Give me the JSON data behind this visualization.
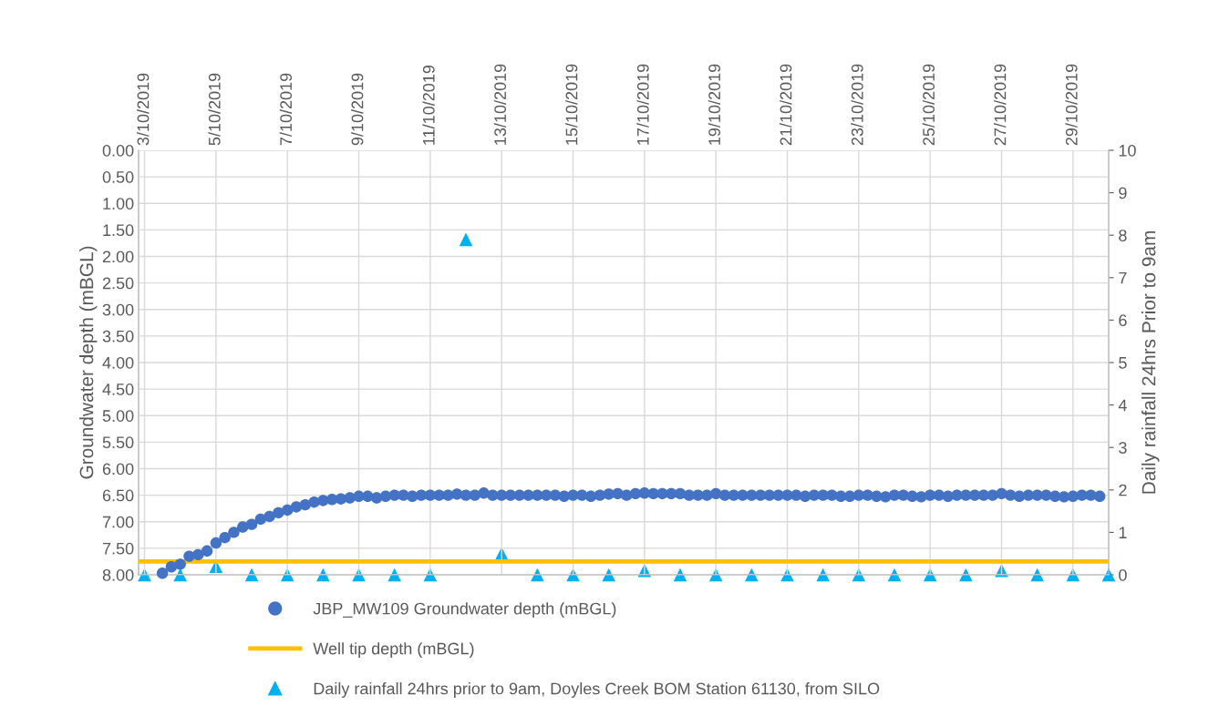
{
  "chart_data": {
    "type": "scatter",
    "ylabel": "Groundwater depth (mBGL)",
    "y2label": "Daily rainfall 24hrs Prior to 9am",
    "xlim": [
      "2019-10-02T20:00",
      "2019-10-30T00:00"
    ],
    "xticks": [
      {
        "value": "2019-10-03",
        "label": "3/10/2019"
      },
      {
        "value": "2019-10-05",
        "label": "5/10/2019"
      },
      {
        "value": "2019-10-07",
        "label": "7/10/2019"
      },
      {
        "value": "2019-10-09",
        "label": "9/10/2019"
      },
      {
        "value": "2019-10-11",
        "label": "11/10/2019"
      },
      {
        "value": "2019-10-13",
        "label": "13/10/2019"
      },
      {
        "value": "2019-10-15",
        "label": "15/10/2019"
      },
      {
        "value": "2019-10-17",
        "label": "17/10/2019"
      },
      {
        "value": "2019-10-19",
        "label": "19/10/2019"
      },
      {
        "value": "2019-10-21",
        "label": "21/10/2019"
      },
      {
        "value": "2019-10-23",
        "label": "23/10/2019"
      },
      {
        "value": "2019-10-25",
        "label": "25/10/2019"
      },
      {
        "value": "2019-10-27",
        "label": "27/10/2019"
      },
      {
        "value": "2019-10-29",
        "label": "29/10/2019"
      }
    ],
    "ylim": [
      8,
      0
    ],
    "yticks": [
      {
        "value": 0,
        "label": "0.00"
      },
      {
        "value": 0.5,
        "label": "0.50"
      },
      {
        "value": 1,
        "label": "1.00"
      },
      {
        "value": 1.5,
        "label": "1.50"
      },
      {
        "value": 2,
        "label": "2.00"
      },
      {
        "value": 2.5,
        "label": "2.50"
      },
      {
        "value": 3,
        "label": "3.00"
      },
      {
        "value": 3.5,
        "label": "3.50"
      },
      {
        "value": 4,
        "label": "4.00"
      },
      {
        "value": 4.5,
        "label": "4.50"
      },
      {
        "value": 5,
        "label": "5.00"
      },
      {
        "value": 5.5,
        "label": "5.50"
      },
      {
        "value": 6,
        "label": "6.00"
      },
      {
        "value": 6.5,
        "label": "6.50"
      },
      {
        "value": 7,
        "label": "7.00"
      },
      {
        "value": 7.5,
        "label": "7.50"
      },
      {
        "value": 8,
        "label": "8.00"
      }
    ],
    "y2lim": [
      0,
      10
    ],
    "y2ticks": [
      0,
      1,
      2,
      3,
      4,
      5,
      6,
      7,
      8,
      9,
      10
    ],
    "grid": true,
    "legend": "bottom",
    "series": [
      {
        "name": "JBP_MW109 Groundwater depth (mBGL)",
        "marker": "circle",
        "color": "#4472c4",
        "x": [
          "2019-10-03T12:00",
          "2019-10-03T18:00",
          "2019-10-04T00:00",
          "2019-10-04T06:00",
          "2019-10-04T12:00",
          "2019-10-04T18:00",
          "2019-10-05T00:00",
          "2019-10-05T06:00",
          "2019-10-05T12:00",
          "2019-10-05T18:00",
          "2019-10-06T00:00",
          "2019-10-06T06:00",
          "2019-10-06T12:00",
          "2019-10-06T18:00",
          "2019-10-07T00:00",
          "2019-10-07T06:00",
          "2019-10-07T12:00",
          "2019-10-07T18:00",
          "2019-10-08T00:00",
          "2019-10-08T06:00",
          "2019-10-08T12:00",
          "2019-10-08T18:00",
          "2019-10-09T00:00",
          "2019-10-09T06:00",
          "2019-10-09T12:00",
          "2019-10-09T18:00",
          "2019-10-10T00:00",
          "2019-10-10T06:00",
          "2019-10-10T12:00",
          "2019-10-10T18:00",
          "2019-10-11T00:00",
          "2019-10-11T06:00",
          "2019-10-11T12:00",
          "2019-10-11T18:00",
          "2019-10-12T00:00",
          "2019-10-12T06:00",
          "2019-10-12T12:00",
          "2019-10-12T18:00",
          "2019-10-13T00:00",
          "2019-10-13T06:00",
          "2019-10-13T12:00",
          "2019-10-13T18:00",
          "2019-10-14T00:00",
          "2019-10-14T06:00",
          "2019-10-14T12:00",
          "2019-10-14T18:00",
          "2019-10-15T00:00",
          "2019-10-15T06:00",
          "2019-10-15T12:00",
          "2019-10-15T18:00",
          "2019-10-16T00:00",
          "2019-10-16T06:00",
          "2019-10-16T12:00",
          "2019-10-16T18:00",
          "2019-10-17T00:00",
          "2019-10-17T06:00",
          "2019-10-17T12:00",
          "2019-10-17T18:00",
          "2019-10-18T00:00",
          "2019-10-18T06:00",
          "2019-10-18T12:00",
          "2019-10-18T18:00",
          "2019-10-19T00:00",
          "2019-10-19T06:00",
          "2019-10-19T12:00",
          "2019-10-19T18:00",
          "2019-10-20T00:00",
          "2019-10-20T06:00",
          "2019-10-20T12:00",
          "2019-10-20T18:00",
          "2019-10-21T00:00",
          "2019-10-21T06:00",
          "2019-10-21T12:00",
          "2019-10-21T18:00",
          "2019-10-22T00:00",
          "2019-10-22T06:00",
          "2019-10-22T12:00",
          "2019-10-22T18:00",
          "2019-10-23T00:00",
          "2019-10-23T06:00",
          "2019-10-23T12:00",
          "2019-10-23T18:00",
          "2019-10-24T00:00",
          "2019-10-24T06:00",
          "2019-10-24T12:00",
          "2019-10-24T18:00",
          "2019-10-25T00:00",
          "2019-10-25T06:00",
          "2019-10-25T12:00",
          "2019-10-25T18:00",
          "2019-10-26T00:00",
          "2019-10-26T06:00",
          "2019-10-26T12:00",
          "2019-10-26T18:00",
          "2019-10-27T00:00",
          "2019-10-27T06:00",
          "2019-10-27T12:00",
          "2019-10-27T18:00",
          "2019-10-28T00:00",
          "2019-10-28T06:00",
          "2019-10-28T12:00",
          "2019-10-28T18:00",
          "2019-10-29T00:00",
          "2019-10-29T06:00",
          "2019-10-29T12:00",
          "2019-10-29T18:00"
        ],
        "values": [
          7.97,
          7.85,
          7.8,
          7.65,
          7.62,
          7.55,
          7.4,
          7.3,
          7.2,
          7.1,
          7.05,
          6.95,
          6.9,
          6.83,
          6.78,
          6.72,
          6.68,
          6.63,
          6.6,
          6.58,
          6.57,
          6.55,
          6.52,
          6.52,
          6.55,
          6.52,
          6.5,
          6.5,
          6.52,
          6.5,
          6.5,
          6.5,
          6.5,
          6.48,
          6.5,
          6.5,
          6.46,
          6.5,
          6.5,
          6.5,
          6.5,
          6.5,
          6.5,
          6.5,
          6.5,
          6.52,
          6.5,
          6.5,
          6.52,
          6.5,
          6.48,
          6.47,
          6.5,
          6.47,
          6.46,
          6.47,
          6.47,
          6.47,
          6.47,
          6.5,
          6.5,
          6.5,
          6.47,
          6.5,
          6.5,
          6.5,
          6.5,
          6.5,
          6.5,
          6.5,
          6.5,
          6.5,
          6.52,
          6.5,
          6.5,
          6.5,
          6.52,
          6.52,
          6.5,
          6.5,
          6.52,
          6.53,
          6.5,
          6.5,
          6.52,
          6.53,
          6.5,
          6.5,
          6.52,
          6.5,
          6.5,
          6.5,
          6.5,
          6.5,
          6.47,
          6.5,
          6.52,
          6.5,
          6.5,
          6.5,
          6.52,
          6.53,
          6.52,
          6.5,
          6.5,
          6.52
        ]
      },
      {
        "name": "Well tip depth (mBGL)",
        "type": "line",
        "marker": "none",
        "line_style": "solid",
        "color": "#ffc000",
        "x": [
          "2019-10-02T20:00",
          "2019-10-30T00:00"
        ],
        "values": [
          7.75,
          7.75
        ]
      },
      {
        "name": "Daily rainfall 24hrs prior to 9am, Doyles Creek BOM Station 61130, from SILO",
        "marker": "triangle",
        "color": "#00b0f0",
        "axis": "y2",
        "x": [
          "2019-10-03",
          "2019-10-04",
          "2019-10-05",
          "2019-10-06",
          "2019-10-07",
          "2019-10-08",
          "2019-10-09",
          "2019-10-10",
          "2019-10-11",
          "2019-10-12",
          "2019-10-13",
          "2019-10-14",
          "2019-10-15",
          "2019-10-16",
          "2019-10-17",
          "2019-10-18",
          "2019-10-19",
          "2019-10-20",
          "2019-10-21",
          "2019-10-22",
          "2019-10-23",
          "2019-10-24",
          "2019-10-25",
          "2019-10-26",
          "2019-10-27",
          "2019-10-28",
          "2019-10-29",
          "2019-10-30"
        ],
        "values": [
          0,
          0,
          0.2,
          0,
          0,
          0,
          0,
          0,
          0,
          7.9,
          0.5,
          0,
          0,
          0,
          0.1,
          0,
          0,
          0,
          0,
          0,
          0,
          0,
          0,
          0,
          0.1,
          0,
          0,
          0
        ]
      }
    ]
  }
}
